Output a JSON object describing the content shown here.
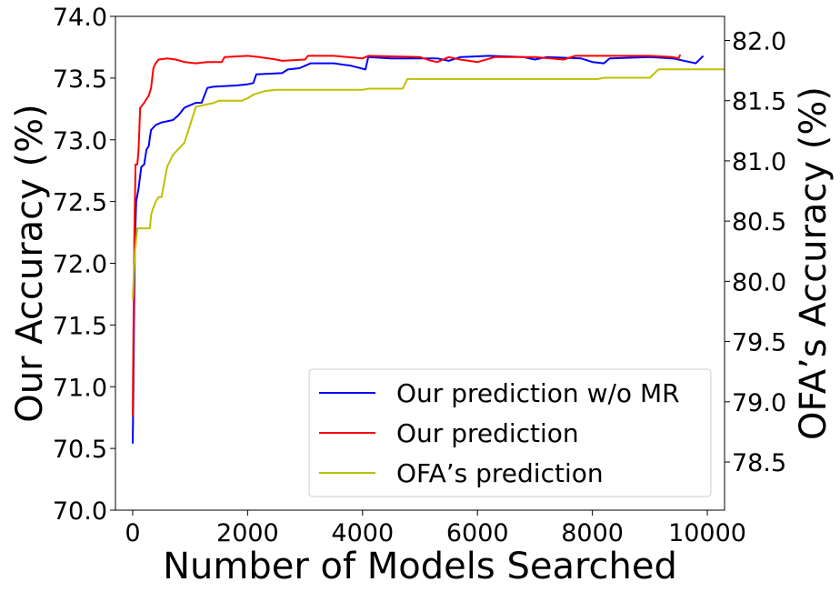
{
  "chart_data": {
    "type": "line",
    "xlabel": "Number of Models Searched",
    "ylabel_left": "Our Accuracy (%)",
    "ylabel_right": "OFA’s Accuracy (%)",
    "xlim": [
      -300,
      10300
    ],
    "ylim_left": [
      70.0,
      74.0
    ],
    "ylim_right": [
      78.1,
      82.2
    ],
    "x_ticks": [
      0,
      2000,
      4000,
      6000,
      8000,
      10000
    ],
    "x_tick_labels": [
      "0",
      "2000",
      "4000",
      "6000",
      "8000",
      "10000"
    ],
    "y_left_ticks": [
      70.0,
      70.5,
      71.0,
      71.5,
      72.0,
      72.5,
      73.0,
      73.5,
      74.0
    ],
    "y_left_tick_labels": [
      "70.0",
      "70.5",
      "71.0",
      "71.5",
      "72.0",
      "72.5",
      "73.0",
      "73.5",
      "74.0"
    ],
    "y_right_ticks": [
      78.5,
      79.0,
      79.5,
      80.0,
      80.5,
      81.0,
      81.5,
      82.0
    ],
    "y_right_tick_labels": [
      "78.5",
      "79.0",
      "79.5",
      "80.0",
      "80.5",
      "81.0",
      "81.5",
      "82.0"
    ],
    "grid": false,
    "legend_position": "bottom-right",
    "series": [
      {
        "name": "Our prediction w/o MR",
        "color": "#0000ff",
        "axis": "left",
        "points": [
          [
            0,
            70.54
          ],
          [
            10,
            70.9
          ],
          [
            25,
            71.6
          ],
          [
            40,
            72.2
          ],
          [
            60,
            72.5
          ],
          [
            100,
            72.6
          ],
          [
            150,
            72.78
          ],
          [
            200,
            72.8
          ],
          [
            240,
            72.92
          ],
          [
            280,
            72.95
          ],
          [
            300,
            73.02
          ],
          [
            320,
            73.08
          ],
          [
            360,
            73.1
          ],
          [
            400,
            73.12
          ],
          [
            500,
            73.14
          ],
          [
            600,
            73.15
          ],
          [
            700,
            73.16
          ],
          [
            800,
            73.2
          ],
          [
            900,
            73.26
          ],
          [
            1000,
            73.28
          ],
          [
            1100,
            73.3
          ],
          [
            1200,
            73.3
          ],
          [
            1300,
            73.42
          ],
          [
            1400,
            73.43
          ],
          [
            1800,
            73.44
          ],
          [
            2000,
            73.45
          ],
          [
            2100,
            73.46
          ],
          [
            2150,
            73.53
          ],
          [
            2600,
            73.54
          ],
          [
            2700,
            73.57
          ],
          [
            2900,
            73.58
          ],
          [
            3000,
            73.6
          ],
          [
            3100,
            73.62
          ],
          [
            3500,
            73.62
          ],
          [
            3800,
            73.6
          ],
          [
            4050,
            73.57
          ],
          [
            4100,
            73.67
          ],
          [
            4500,
            73.66
          ],
          [
            5000,
            73.66
          ],
          [
            5300,
            73.66
          ],
          [
            5500,
            73.64
          ],
          [
            5700,
            73.67
          ],
          [
            6200,
            73.68
          ],
          [
            6800,
            73.67
          ],
          [
            7000,
            73.65
          ],
          [
            7200,
            73.67
          ],
          [
            7800,
            73.66
          ],
          [
            8000,
            73.63
          ],
          [
            8200,
            73.62
          ],
          [
            8300,
            73.66
          ],
          [
            9000,
            73.67
          ],
          [
            9400,
            73.66
          ],
          [
            9800,
            73.62
          ],
          [
            9930,
            73.68
          ]
        ]
      },
      {
        "name": "Our prediction",
        "color": "#ff0000",
        "axis": "left",
        "points": [
          [
            0,
            70.76
          ],
          [
            10,
            71.3
          ],
          [
            20,
            71.8
          ],
          [
            30,
            72.3
          ],
          [
            50,
            72.8
          ],
          [
            80,
            72.8
          ],
          [
            100,
            72.9
          ],
          [
            130,
            73.26
          ],
          [
            200,
            73.3
          ],
          [
            280,
            73.36
          ],
          [
            320,
            73.42
          ],
          [
            360,
            73.58
          ],
          [
            400,
            73.62
          ],
          [
            450,
            73.65
          ],
          [
            600,
            73.66
          ],
          [
            750,
            73.65
          ],
          [
            900,
            73.63
          ],
          [
            1100,
            73.62
          ],
          [
            1300,
            73.63
          ],
          [
            1550,
            73.63
          ],
          [
            1600,
            73.67
          ],
          [
            2000,
            73.68
          ],
          [
            2200,
            73.67
          ],
          [
            2500,
            73.65
          ],
          [
            2600,
            73.64
          ],
          [
            3000,
            73.65
          ],
          [
            3050,
            73.68
          ],
          [
            3500,
            73.68
          ],
          [
            4000,
            73.66
          ],
          [
            4100,
            73.68
          ],
          [
            5000,
            73.67
          ],
          [
            5200,
            73.64
          ],
          [
            5300,
            73.63
          ],
          [
            5500,
            73.67
          ],
          [
            5700,
            73.65
          ],
          [
            6000,
            73.63
          ],
          [
            6300,
            73.67
          ],
          [
            7000,
            73.67
          ],
          [
            7500,
            73.65
          ],
          [
            7700,
            73.68
          ],
          [
            8200,
            73.68
          ],
          [
            9000,
            73.68
          ],
          [
            9400,
            73.67
          ],
          [
            9500,
            73.66
          ],
          [
            9530,
            73.69
          ]
        ]
      },
      {
        "name": "OFA’s prediction",
        "color": "#bfbf00",
        "axis": "right",
        "points": [
          [
            0,
            79.85
          ],
          [
            15,
            80.0
          ],
          [
            40,
            80.25
          ],
          [
            60,
            80.35
          ],
          [
            80,
            80.44
          ],
          [
            300,
            80.44
          ],
          [
            320,
            80.55
          ],
          [
            350,
            80.6
          ],
          [
            400,
            80.66
          ],
          [
            450,
            80.7
          ],
          [
            500,
            80.7
          ],
          [
            600,
            80.95
          ],
          [
            700,
            81.05
          ],
          [
            800,
            81.1
          ],
          [
            900,
            81.15
          ],
          [
            1000,
            81.3
          ],
          [
            1100,
            81.45
          ],
          [
            1400,
            81.48
          ],
          [
            1500,
            81.5
          ],
          [
            1900,
            81.5
          ],
          [
            2000,
            81.52
          ],
          [
            2100,
            81.55
          ],
          [
            2300,
            81.58
          ],
          [
            2500,
            81.59
          ],
          [
            4000,
            81.59
          ],
          [
            4100,
            81.6
          ],
          [
            4700,
            81.6
          ],
          [
            4780,
            81.68
          ],
          [
            8100,
            81.68
          ],
          [
            8200,
            81.69
          ],
          [
            9000,
            81.69
          ],
          [
            9150,
            81.76
          ],
          [
            10300,
            81.76
          ]
        ]
      }
    ]
  }
}
